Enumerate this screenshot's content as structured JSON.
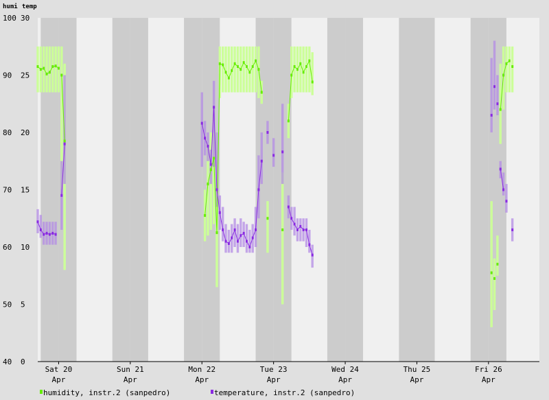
{
  "chart_data": {
    "type": "line",
    "axis_titles": {
      "left": "humi",
      "right": "temp"
    },
    "y_left": {
      "range": [
        40,
        100
      ],
      "ticks": [
        40,
        50,
        60,
        70,
        80,
        90,
        100
      ]
    },
    "y_right": {
      "range": [
        0,
        30
      ],
      "ticks": [
        0,
        5,
        10,
        15,
        20,
        25,
        30
      ]
    },
    "x_range": [
      "Apr 19 17:00",
      "Apr 26 20:00"
    ],
    "x_ticks": [
      {
        "label": "Sat 20",
        "sub": "Apr"
      },
      {
        "label": "Sun 21",
        "sub": "Apr"
      },
      {
        "label": "Mon 22",
        "sub": "Apr"
      },
      {
        "label": "Tue 23",
        "sub": "Apr"
      },
      {
        "label": "Wed 24",
        "sub": "Apr"
      },
      {
        "label": "Thu 25",
        "sub": "Apr"
      },
      {
        "label": "Fri 26",
        "sub": "Apr"
      }
    ],
    "series": [
      {
        "name": "humidity, instr.2 (sanpedro)",
        "axis": "left",
        "color": "#66ee00",
        "range_color": "#ccff99",
        "segments": [
          [
            {
              "x": "Apr 19 17:00",
              "y": 91.5,
              "low": 87,
              "high": 95
            },
            {
              "x": "Apr 19 18:00",
              "y": 91,
              "low": 87,
              "high": 95
            },
            {
              "x": "Apr 19 19:00",
              "y": 91.2,
              "low": 87,
              "high": 95
            },
            {
              "x": "Apr 19 20:00",
              "y": 90.2,
              "low": 87,
              "high": 95
            },
            {
              "x": "Apr 19 21:00",
              "y": 90.5,
              "low": 87,
              "high": 95
            },
            {
              "x": "Apr 19 22:00",
              "y": 91.5,
              "low": 87,
              "high": 95
            },
            {
              "x": "Apr 19 23:00",
              "y": 91.6,
              "low": 87,
              "high": 95
            },
            {
              "x": "Apr 20 00:00",
              "y": 91.2,
              "low": 87,
              "high": 95
            }
          ],
          [
            {
              "x": "Apr 20 01:00",
              "y": 90,
              "low": 70,
              "high": 95
            },
            {
              "x": "Apr 20 02:00",
              "y": 78.5,
              "low": 56,
              "high": 92
            }
          ],
          [
            {
              "x": "Apr 22 01:00",
              "y": 65.5,
              "low": 61,
              "high": 70
            },
            {
              "x": "Apr 22 02:00",
              "y": 71,
              "low": 62,
              "high": 78
            },
            {
              "x": "Apr 22 03:00",
              "y": 73.5,
              "low": 63,
              "high": 80
            },
            {
              "x": "Apr 22 04:00",
              "y": 75.5,
              "low": 64,
              "high": 80
            },
            {
              "x": "Apr 22 05:00",
              "y": 62.5,
              "low": 53,
              "high": 80
            },
            {
              "x": "Apr 22 06:00",
              "y": 92,
              "low": 86,
              "high": 95
            },
            {
              "x": "Apr 22 07:00",
              "y": 91.8,
              "low": 87,
              "high": 95
            },
            {
              "x": "Apr 22 08:00",
              "y": 90.5,
              "low": 87,
              "high": 95
            },
            {
              "x": "Apr 22 09:00",
              "y": 89.5,
              "low": 87,
              "high": 95
            },
            {
              "x": "Apr 22 10:00",
              "y": 90.8,
              "low": 87,
              "high": 95
            },
            {
              "x": "Apr 22 11:00",
              "y": 92,
              "low": 87,
              "high": 95
            },
            {
              "x": "Apr 22 12:00",
              "y": 91.5,
              "low": 87,
              "high": 95
            },
            {
              "x": "Apr 22 13:00",
              "y": 91,
              "low": 87,
              "high": 95
            },
            {
              "x": "Apr 22 14:00",
              "y": 92.2,
              "low": 87,
              "high": 95
            },
            {
              "x": "Apr 22 15:00",
              "y": 91.5,
              "low": 87,
              "high": 95
            },
            {
              "x": "Apr 22 16:00",
              "y": 90.5,
              "low": 87,
              "high": 95
            },
            {
              "x": "Apr 22 17:00",
              "y": 91.5,
              "low": 87,
              "high": 95
            },
            {
              "x": "Apr 22 18:00",
              "y": 92.5,
              "low": 87,
              "high": 95
            },
            {
              "x": "Apr 22 19:00",
              "y": 91,
              "low": 86,
              "high": 95
            },
            {
              "x": "Apr 22 20:00",
              "y": 87,
              "low": 85,
              "high": 89
            }
          ],
          [
            {
              "x": "Apr 22 22:00",
              "y": 65,
              "low": 59,
              "high": 68
            }
          ],
          [
            {
              "x": "Apr 23 03:00",
              "y": 63,
              "low": 50,
              "high": 73
            }
          ],
          [
            {
              "x": "Apr 23 05:00",
              "y": 82,
              "low": 79,
              "high": 85
            },
            {
              "x": "Apr 23 06:00",
              "y": 90,
              "low": 86,
              "high": 95
            },
            {
              "x": "Apr 23 07:00",
              "y": 91.5,
              "low": 87,
              "high": 95
            },
            {
              "x": "Apr 23 08:00",
              "y": 91,
              "low": 87,
              "high": 95
            },
            {
              "x": "Apr 23 09:00",
              "y": 92,
              "low": 87,
              "high": 95
            },
            {
              "x": "Apr 23 10:00",
              "y": 90.5,
              "low": 87,
              "high": 95
            },
            {
              "x": "Apr 23 11:00",
              "y": 91.5,
              "low": 87,
              "high": 95
            },
            {
              "x": "Apr 23 12:00",
              "y": 92.5,
              "low": 87,
              "high": 95
            },
            {
              "x": "Apr 23 13:00",
              "y": 88.8,
              "low": 86.5,
              "high": 94
            }
          ],
          [
            {
              "x": "Apr 26 01:00",
              "y": 55.5,
              "low": 46,
              "high": 68
            }
          ],
          [
            {
              "x": "Apr 26 02:00",
              "y": 54.5,
              "low": 49,
              "high": 58
            }
          ],
          [
            {
              "x": "Apr 26 03:00",
              "y": 57,
              "low": 55,
              "high": 62
            }
          ],
          [
            {
              "x": "Apr 26 04:00",
              "y": 84,
              "low": 78,
              "high": 92
            },
            {
              "x": "Apr 26 05:00",
              "y": 90,
              "low": 84,
              "high": 95
            },
            {
              "x": "Apr 26 06:00",
              "y": 92,
              "low": 87,
              "high": 95
            },
            {
              "x": "Apr 26 07:00",
              "y": 92.5,
              "low": 87,
              "high": 95
            }
          ],
          [
            {
              "x": "Apr 26 08:00",
              "y": 91.5,
              "low": 87,
              "high": 95
            }
          ]
        ]
      },
      {
        "name": "temperature, instr.2 (sanpedro)",
        "axis": "right",
        "color": "#8a2be2",
        "range_color": "#b48ce6",
        "segments": [
          [
            {
              "x": "Apr 19 17:00",
              "y": 12.2,
              "low": 11.2,
              "high": 13.3
            },
            {
              "x": "Apr 19 18:00",
              "y": 11.5,
              "low": 10.8,
              "high": 12.8
            },
            {
              "x": "Apr 19 19:00",
              "y": 11.1,
              "low": 10.2,
              "high": 12.2
            },
            {
              "x": "Apr 19 20:00",
              "y": 11.2,
              "low": 10.2,
              "high": 12.2
            },
            {
              "x": "Apr 19 21:00",
              "y": 11.1,
              "low": 10.2,
              "high": 12.2
            },
            {
              "x": "Apr 19 22:00",
              "y": 11.2,
              "low": 10.2,
              "high": 12.2
            },
            {
              "x": "Apr 19 23:00",
              "y": 11.1,
              "low": 10.2,
              "high": 12.2
            }
          ],
          [
            {
              "x": "Apr 20 01:00",
              "y": 14.5,
              "low": 11.5,
              "high": 17.5
            },
            {
              "x": "Apr 20 02:00",
              "y": 19,
              "low": 15.5,
              "high": 25
            }
          ],
          [
            {
              "x": "Apr 22 00:00",
              "y": 20.8,
              "low": 17,
              "high": 23.5
            },
            {
              "x": "Apr 22 01:00",
              "y": 19.5,
              "low": 18,
              "high": 21
            },
            {
              "x": "Apr 22 02:00",
              "y": 18.8,
              "low": 17.5,
              "high": 20
            },
            {
              "x": "Apr 22 03:00",
              "y": 17.2,
              "low": 15.5,
              "high": 18.5
            },
            {
              "x": "Apr 22 04:00",
              "y": 22.2,
              "low": 17,
              "high": 24.5
            },
            {
              "x": "Apr 22 05:00",
              "y": 15,
              "low": 13.5,
              "high": 20
            },
            {
              "x": "Apr 22 06:00",
              "y": 13,
              "low": 11.5,
              "high": 14.5
            },
            {
              "x": "Apr 22 07:00",
              "y": 11.5,
              "low": 10.5,
              "high": 13.5
            },
            {
              "x": "Apr 22 08:00",
              "y": 10.5,
              "low": 9.5,
              "high": 12
            },
            {
              "x": "Apr 22 09:00",
              "y": 10.3,
              "low": 9.5,
              "high": 11.5
            },
            {
              "x": "Apr 22 10:00",
              "y": 10.8,
              "low": 9.5,
              "high": 12
            },
            {
              "x": "Apr 22 11:00",
              "y": 11.5,
              "low": 10,
              "high": 12.5
            },
            {
              "x": "Apr 22 12:00",
              "y": 10.5,
              "low": 9.5,
              "high": 12
            },
            {
              "x": "Apr 22 13:00",
              "y": 11,
              "low": 10,
              "high": 12.5
            },
            {
              "x": "Apr 22 14:00",
              "y": 11.2,
              "low": 10,
              "high": 12.2
            },
            {
              "x": "Apr 22 15:00",
              "y": 10.5,
              "low": 9.5,
              "high": 12
            },
            {
              "x": "Apr 22 16:00",
              "y": 10,
              "low": 9.5,
              "high": 11.5
            },
            {
              "x": "Apr 22 17:00",
              "y": 10.8,
              "low": 9.5,
              "high": 12
            },
            {
              "x": "Apr 22 18:00",
              "y": 11.5,
              "low": 10,
              "high": 13.5
            },
            {
              "x": "Apr 22 19:00",
              "y": 15,
              "low": 12.5,
              "high": 18
            },
            {
              "x": "Apr 22 20:00",
              "y": 17.5,
              "low": 15.5,
              "high": 20
            }
          ],
          [
            {
              "x": "Apr 22 22:00",
              "y": 20,
              "low": 19,
              "high": 21
            }
          ],
          [
            {
              "x": "Apr 23 00:00",
              "y": 18,
              "low": 17,
              "high": 19.5
            }
          ],
          [
            {
              "x": "Apr 23 03:00",
              "y": 18.3,
              "low": 15.5,
              "high": 22.5
            }
          ],
          [
            {
              "x": "Apr 23 05:00",
              "y": 13.5,
              "low": 12.5,
              "high": 14.5
            },
            {
              "x": "Apr 23 06:00",
              "y": 12.5,
              "low": 11.5,
              "high": 13.5
            },
            {
              "x": "Apr 23 07:00",
              "y": 12,
              "low": 11,
              "high": 13.5
            },
            {
              "x": "Apr 23 08:00",
              "y": 11.5,
              "low": 10.5,
              "high": 12.5
            },
            {
              "x": "Apr 23 09:00",
              "y": 11.8,
              "low": 10.5,
              "high": 12.5
            },
            {
              "x": "Apr 23 10:00",
              "y": 11.5,
              "low": 10.5,
              "high": 12.5
            },
            {
              "x": "Apr 23 11:00",
              "y": 11.5,
              "low": 10,
              "high": 12.5
            },
            {
              "x": "Apr 23 12:00",
              "y": 10.2,
              "low": 9.5,
              "high": 11.5
            },
            {
              "x": "Apr 23 13:00",
              "y": 9.3,
              "low": 8.2,
              "high": 10.2
            }
          ],
          [
            {
              "x": "Apr 26 01:00",
              "y": 21.5,
              "low": 20,
              "high": 26.5
            }
          ],
          [
            {
              "x": "Apr 26 02:00",
              "y": 24,
              "low": 22,
              "high": 28
            }
          ],
          [
            {
              "x": "Apr 26 03:00",
              "y": 22.5,
              "low": 21.5,
              "high": 25
            }
          ],
          [
            {
              "x": "Apr 26 04:00",
              "y": 16.8,
              "low": 16,
              "high": 17.5
            },
            {
              "x": "Apr 26 05:00",
              "y": 15,
              "low": 14.5,
              "high": 16.5
            }
          ],
          [
            {
              "x": "Apr 26 06:00",
              "y": 14,
              "low": 13,
              "high": 15.5
            }
          ],
          [
            {
              "x": "Apr 26 08:00",
              "y": 11.5,
              "low": 10.5,
              "high": 12.5
            }
          ]
        ]
      }
    ],
    "legend_placement": "bottom-left",
    "grid": "alternating hour bands",
    "colors": {
      "page_bg": "#e0e0e0",
      "plot_bg": "#e8e8e8",
      "band_light": "#f0f0f0",
      "band_dark": "#cccccc"
    }
  }
}
